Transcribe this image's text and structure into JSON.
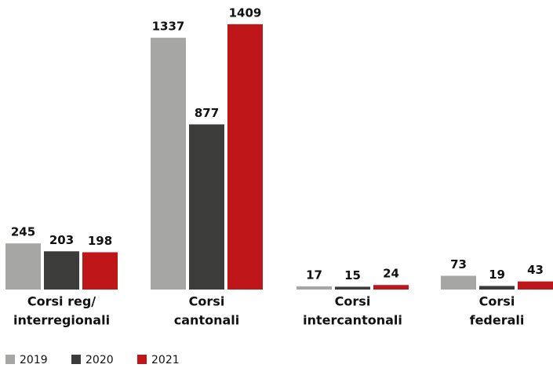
{
  "chart_data": {
    "type": "bar",
    "categories": [
      [
        "Corsi reg/",
        "interregionali"
      ],
      [
        "Corsi",
        "cantonali"
      ],
      [
        "Corsi",
        "intercantonali"
      ],
      [
        "Corsi",
        "federali"
      ]
    ],
    "series": [
      {
        "name": "2019",
        "color": "#a6a6a5",
        "values": [
          245,
          1337,
          17,
          73
        ]
      },
      {
        "name": "2020",
        "color": "#3c3c3b",
        "values": [
          203,
          877,
          15,
          19
        ]
      },
      {
        "name": "2021",
        "color": "#be1619",
        "values": [
          198,
          1409,
          24,
          43
        ]
      }
    ],
    "ylim": [
      0,
      1500
    ]
  }
}
